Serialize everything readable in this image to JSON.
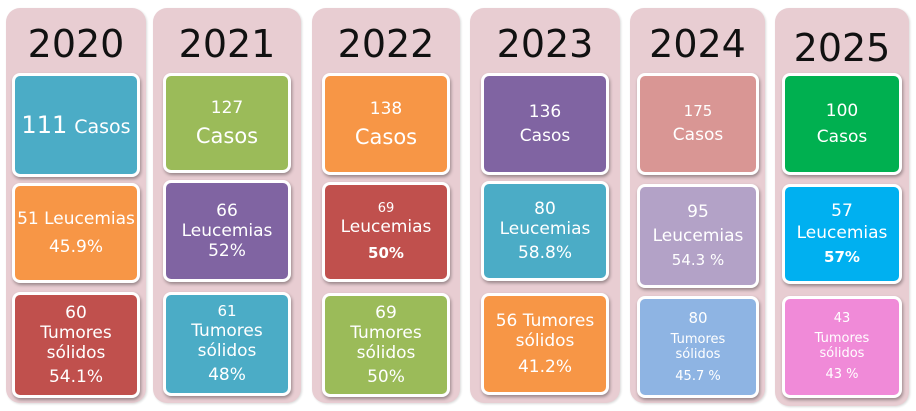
{
  "colors": {
    "panel": "#e8cdd2",
    "teal": "#4bacc6",
    "green": "#9bbb59",
    "orange": "#f79646",
    "purple": "#8064a2",
    "red": "#c0504d",
    "pink": "#d99694",
    "lavender": "#b3a2c7",
    "lightblue": "#8eb4e3",
    "brightgreen": "#00b050",
    "cyan": "#00b0f0",
    "magenta": "#f08ad8"
  },
  "years": [
    {
      "year": "2020",
      "cases": {
        "n": "111",
        "label": "Casos"
      },
      "leuk": {
        "line1": "51 Leucemias",
        "pct": "45.9%"
      },
      "solid": {
        "n": "60",
        "label1": "Tumores",
        "label2": "sólidos",
        "pct": "54.1%"
      }
    },
    {
      "year": "2021",
      "cases": {
        "n": "127",
        "label": "Casos"
      },
      "leuk": {
        "n": "66",
        "label": "Leucemias",
        "pct": "52%"
      },
      "solid": {
        "n": "61",
        "label1": "Tumores",
        "label2": "sólidos",
        "pct": "48%"
      }
    },
    {
      "year": "2022",
      "cases": {
        "n": "138",
        "label": "Casos"
      },
      "leuk": {
        "n": "69",
        "label": "Leucemias",
        "pct": "50%"
      },
      "solid": {
        "n": "69",
        "label1": "Tumores",
        "label2": "sólidos",
        "pct": "50%"
      }
    },
    {
      "year": "2023",
      "cases": {
        "n": "136",
        "label": "Casos"
      },
      "leuk": {
        "n": "80",
        "label": "Leucemias",
        "pct": "58.8%"
      },
      "solid": {
        "line1": "56 Tumores",
        "label2": "sólidos",
        "pct": "41.2%"
      }
    },
    {
      "year": "2024",
      "cases": {
        "n": "175",
        "label": "Casos"
      },
      "leuk": {
        "n": "95",
        "label": "Leucemias",
        "pct": "54.3 %"
      },
      "solid": {
        "n": "80",
        "label1": "Tumores",
        "label2": "sólidos",
        "pct": "45.7 %"
      }
    },
    {
      "year": "2025",
      "cases": {
        "n": "100",
        "label": "Casos"
      },
      "leuk": {
        "n": "57",
        "label": "Leucemias",
        "pct": "57%"
      },
      "solid": {
        "n": "43",
        "label1": "Tumores",
        "label2": "sólidos",
        "pct": "43 %"
      }
    }
  ]
}
